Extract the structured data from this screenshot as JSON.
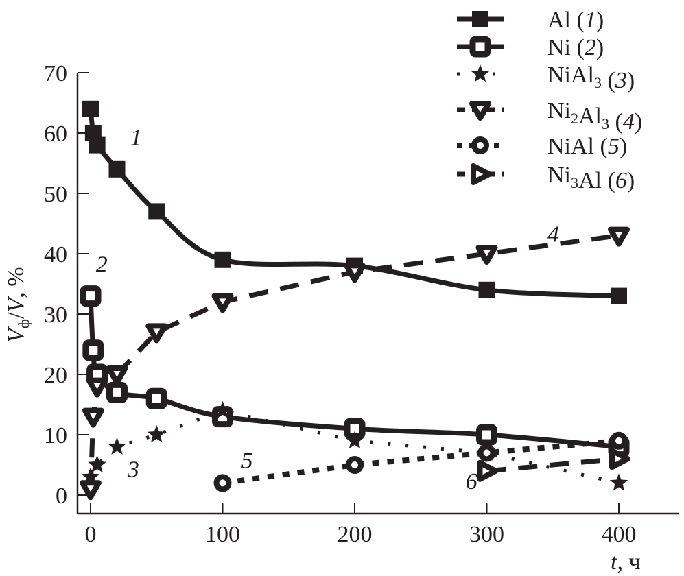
{
  "chart_data": {
    "type": "line",
    "title": "",
    "xlabel": "t, ч",
    "xlabel_parts": {
      "var": "t",
      "unit": ", ч"
    },
    "ylabel": "Vф/V, %",
    "ylabel_parts": {
      "v1": "V",
      "sub": "ф",
      "slash": "/",
      "v2": "V",
      "unit": ", %"
    },
    "xlim": [
      -5,
      450
    ],
    "ylim": [
      -3,
      70
    ],
    "xticks": [
      0,
      100,
      200,
      300,
      400
    ],
    "yticks": [
      0,
      10,
      20,
      30,
      40,
      50,
      60,
      70
    ],
    "grid": false,
    "legend_position": "top-right",
    "series": [
      {
        "name": "Al (1)",
        "label_main": "Al",
        "label_num": "1",
        "label_sub": "",
        "marker": "filled-square",
        "line": "solid-smooth",
        "x": [
          0,
          2,
          5,
          20,
          50,
          100,
          200,
          300,
          400
        ],
        "y": [
          64,
          60,
          58,
          54,
          47,
          39,
          38,
          34,
          33
        ],
        "curve_label": "1",
        "curve_label_at": [
          30,
          58
        ]
      },
      {
        "name": "Ni (2)",
        "label_main": "Ni",
        "label_num": "2",
        "label_sub": "",
        "marker": "open-square",
        "line": "solid-smooth",
        "x": [
          0,
          2,
          5,
          20,
          50,
          100,
          200,
          300,
          400
        ],
        "y": [
          33,
          24,
          20,
          17,
          16,
          13,
          11,
          10,
          8
        ],
        "curve_label": "2",
        "curve_label_at": [
          4,
          37
        ]
      },
      {
        "name": "NiAl3 (3)",
        "label_main": "NiAl",
        "label_sub_parts": [
          "3"
        ],
        "label_num": "3",
        "marker": "star",
        "line": "dotted-sparse",
        "x": [
          0,
          5,
          20,
          50,
          100,
          200,
          300,
          400
        ],
        "y": [
          3,
          5,
          8,
          10,
          14,
          9,
          7,
          2
        ],
        "curve_label": "3",
        "curve_label_at": [
          28,
          3
        ]
      },
      {
        "name": "Ni2Al3 (4)",
        "label_main": "Ni2Al3",
        "label_num": "4",
        "marker": "open-triangle-down",
        "line": "dashed",
        "x": [
          0,
          2,
          5,
          20,
          50,
          100,
          200,
          300,
          400
        ],
        "y": [
          1,
          13,
          18,
          20,
          27,
          32,
          37,
          40,
          43
        ],
        "curve_label": "4",
        "curve_label_at": [
          346,
          42
        ]
      },
      {
        "name": "NiAl (5)",
        "label_main": "NiAl",
        "label_num": "5",
        "marker": "open-circle",
        "line": "dotted",
        "x": [
          100,
          200,
          300,
          400
        ],
        "y": [
          2,
          5,
          7,
          9
        ],
        "curve_label": "5",
        "curve_label_at": [
          114,
          4.5
        ]
      },
      {
        "name": "Ni3Al (6)",
        "label_main": "Ni3Al",
        "label_num": "6",
        "marker": "open-triangle-right",
        "line": "dashed",
        "x": [
          300,
          400
        ],
        "y": [
          4,
          6
        ],
        "curve_label": "6",
        "curve_label_at": [
          284,
          1
        ]
      }
    ],
    "legend": [
      {
        "text": "Al",
        "sub": "",
        "text2": "",
        "sub2": "",
        "num": "1"
      },
      {
        "text": "Ni",
        "sub": "",
        "text2": "",
        "sub2": "",
        "num": "2"
      },
      {
        "text": "NiAl",
        "sub": "3",
        "text2": "",
        "sub2": "",
        "num": "3"
      },
      {
        "text": "Ni",
        "sub": "2",
        "text2": "Al",
        "sub2": "3",
        "num": "4"
      },
      {
        "text": "NiAl",
        "sub": "",
        "text2": "",
        "sub2": "",
        "num": "5"
      },
      {
        "text": "Ni",
        "sub": "3",
        "text2": "Al",
        "sub2": "",
        "num": "6"
      }
    ]
  },
  "colors": {
    "ink": "#231f20",
    "background": "#ffffff"
  }
}
